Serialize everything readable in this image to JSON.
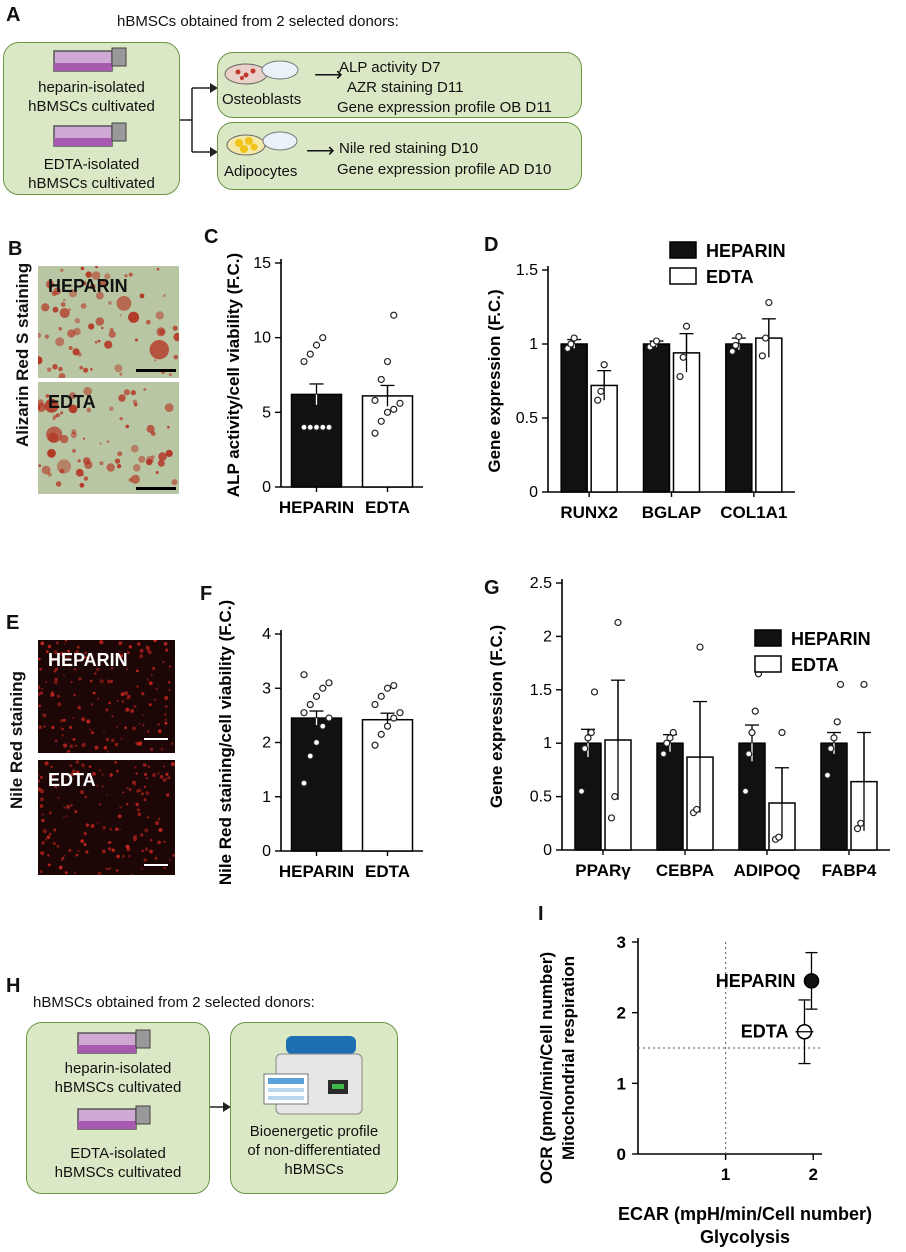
{
  "panel_labels": {
    "a": "A",
    "b": "B",
    "c": "C",
    "d": "D",
    "e": "E",
    "f": "F",
    "g": "G",
    "h": "H",
    "i": "I"
  },
  "panel_a": {
    "title": "hBMSCs obtained from 2 selected donors:",
    "heparin_line1": "heparin-isolated",
    "heparin_line2": "hBMSCs cultivated",
    "edta_line1": "EDTA-isolated",
    "edta_line2": "hBMSCs cultivated",
    "osteoblasts": "Osteoblasts",
    "osteo_items": [
      "ALP activity D7",
      "AZR staining D11",
      "Gene expression profile OB D11"
    ],
    "adipocytes": "Adipocytes",
    "adipo_items": [
      "Nile red staining D10",
      "Gene expression profile AD D10"
    ]
  },
  "panel_b": {
    "side_label": "Alizarin Red S staining",
    "img1_label": "HEPARIN",
    "img2_label": "EDTA"
  },
  "panel_e": {
    "side_label": "Nile Red staining",
    "img1_label": "HEPARIN",
    "img2_label": "EDTA"
  },
  "panel_h": {
    "title": "hBMSCs obtained from 2 selected donors:",
    "heparin_line1": "heparin-isolated",
    "heparin_line2": "hBMSCs cultivated",
    "edta_line1": "EDTA-isolated",
    "edta_line2": "hBMSCs cultivated",
    "result_line1": "Bioenergetic profile",
    "result_line2": "of non-differentiated",
    "result_line3": "hBMSCs"
  },
  "colors": {
    "heparin_fill": "#111111",
    "edta_fill": "#ffffff",
    "box_fill": "#dbe8c5",
    "box_border": "#6c9545",
    "alizarin_bg": "#b9c7a5",
    "alizarin_spot": "#b3301f",
    "nile_bg": "#1c0606",
    "nile_spot": "#c8261f"
  },
  "chart_data": [
    {
      "panel": "C",
      "type": "bar",
      "ylabel": "ALP activity/cell viability (F.C.)",
      "categories": [
        "HEPARIN",
        "EDTA"
      ],
      "yticks": [
        "0",
        "5",
        "10",
        "15"
      ],
      "ylim": [
        0,
        15
      ],
      "values": [
        6.2,
        6.1
      ],
      "errors": [
        0.7,
        0.7
      ],
      "points": [
        [
          4,
          4,
          4,
          4,
          4,
          8.4,
          8.9,
          9.5,
          10.0
        ],
        [
          3.6,
          4.4,
          5.0,
          5.2,
          5.6,
          5.8,
          7.2,
          8.4,
          11.5
        ]
      ]
    },
    {
      "panel": "D",
      "type": "bar",
      "ylabel": "Gene expression (F.C.)",
      "categories": [
        "RUNX2",
        "BGLAP",
        "COL1A1"
      ],
      "yticks": [
        "0",
        "0.5",
        "1",
        "1.5"
      ],
      "ylim": [
        0,
        1.5
      ],
      "series": [
        {
          "name": "HEPARIN",
          "values": [
            1.0,
            1.0,
            1.0
          ],
          "errors": [
            0.03,
            0.02,
            0.04
          ],
          "points": [
            [
              0.97,
              1.0,
              1.04
            ],
            [
              0.98,
              1.0,
              1.02
            ],
            [
              0.95,
              0.99,
              1.05
            ]
          ]
        },
        {
          "name": "EDTA",
          "values": [
            0.72,
            0.94,
            1.04
          ],
          "errors": [
            0.1,
            0.13,
            0.13
          ],
          "points": [
            [
              0.62,
              0.68,
              0.86
            ],
            [
              0.78,
              0.91,
              1.12
            ],
            [
              0.92,
              1.04,
              1.28
            ]
          ]
        }
      ]
    },
    {
      "panel": "F",
      "type": "bar",
      "ylabel": "Nile Red staining/cell viability (F.C.)",
      "categories": [
        "HEPARIN",
        "EDTA"
      ],
      "yticks": [
        "0",
        "1",
        "2",
        "3",
        "4"
      ],
      "ylim": [
        0,
        4
      ],
      "values": [
        2.45,
        2.42
      ],
      "errors": [
        0.13,
        0.12
      ],
      "points": [
        [
          1.25,
          1.75,
          2.0,
          2.3,
          2.45,
          2.55,
          2.7,
          2.85,
          3.0,
          3.1,
          3.25
        ],
        [
          1.95,
          2.15,
          2.3,
          2.45,
          2.55,
          2.7,
          2.85,
          3.0,
          3.05
        ]
      ]
    },
    {
      "panel": "G",
      "type": "bar",
      "ylabel": "Gene expression (F.C.)",
      "categories": [
        "PPARγ",
        "CEBPA",
        "ADIPOQ",
        "FABP4"
      ],
      "yticks": [
        "0",
        "0.5",
        "1",
        "1.5",
        "2",
        "2.5"
      ],
      "ylim": [
        0,
        2.5
      ],
      "series": [
        {
          "name": "HEPARIN",
          "values": [
            1.0,
            1.0,
            1.0,
            1.0
          ],
          "errors": [
            0.13,
            0.08,
            0.17,
            0.1
          ],
          "points": [
            [
              0.55,
              0.95,
              1.05,
              1.1,
              1.48
            ],
            [
              0.9,
              1.0,
              1.05,
              1.1
            ],
            [
              0.55,
              0.9,
              1.1,
              1.3,
              1.65
            ],
            [
              0.7,
              0.95,
              1.05,
              1.2,
              1.55
            ]
          ]
        },
        {
          "name": "EDTA",
          "values": [
            1.03,
            0.87,
            0.44,
            0.64
          ],
          "errors": [
            0.56,
            0.52,
            0.33,
            0.46
          ],
          "points": [
            [
              0.3,
              0.5,
              2.13
            ],
            [
              0.35,
              0.38,
              1.9
            ],
            [
              0.1,
              0.12,
              1.1
            ],
            [
              0.2,
              0.25,
              1.55
            ]
          ]
        }
      ]
    },
    {
      "panel": "I",
      "type": "scatter",
      "ylabel_line1": "OCR (pmol/min/Cell number)",
      "ylabel_line2": "Mitochondrial respiration",
      "xlabel_line1": "ECAR (mpH/min/Cell number)",
      "xlabel_line2": "Glycolysis",
      "xticks": [
        "1",
        "2"
      ],
      "yticks": [
        "0",
        "1",
        "2",
        "3"
      ],
      "xlim": [
        0,
        2.1
      ],
      "ylim": [
        0,
        3
      ],
      "reference_x": 1,
      "reference_y": 1.5,
      "series": [
        {
          "name": "HEPARIN",
          "x": 1.98,
          "y": 2.45,
          "yerr": 0.4,
          "xerr": 0.03
        },
        {
          "name": "EDTA",
          "x": 1.9,
          "y": 1.73,
          "yerr": 0.45,
          "xerr": 0.04
        }
      ]
    }
  ]
}
